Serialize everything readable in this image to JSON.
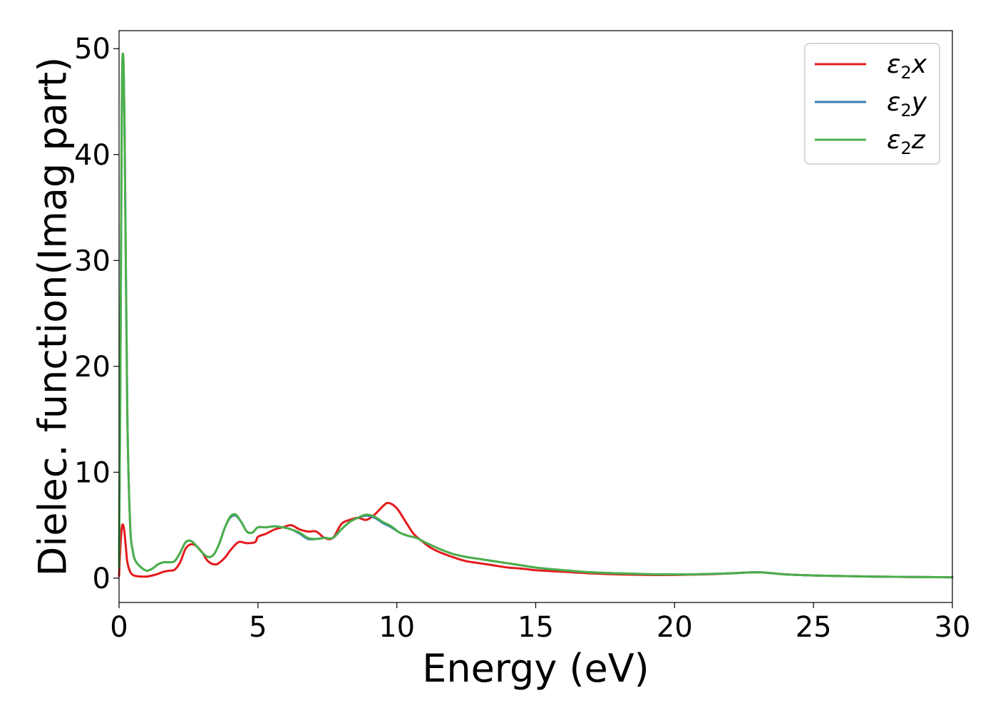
{
  "chart_data": {
    "type": "line",
    "title": "",
    "xlabel": "Energy (eV)",
    "ylabel": "Dielec. function(Imag part)",
    "xlim": [
      0,
      30
    ],
    "ylim": [
      -2.3,
      51.7
    ],
    "xticks": [
      0,
      5,
      10,
      15,
      20,
      25,
      30
    ],
    "yticks": [
      0,
      10,
      20,
      30,
      40,
      50
    ],
    "grid": false,
    "legend_position": "top-right",
    "series": [
      {
        "name": "ε2x",
        "legend_base": "ε",
        "legend_sub": "2",
        "legend_tail": "x",
        "color": "#e41a1c",
        "x": [
          0,
          0.05,
          0.1,
          0.15,
          0.2,
          0.25,
          0.3,
          0.4,
          0.5,
          0.6,
          0.8,
          1.0,
          1.2,
          1.4,
          1.6,
          1.8,
          2.0,
          2.2,
          2.4,
          2.6,
          2.8,
          3.0,
          3.2,
          3.5,
          3.8,
          4.0,
          4.3,
          4.6,
          4.9,
          5.0,
          5.3,
          5.6,
          5.9,
          6.2,
          6.5,
          6.8,
          7.1,
          7.4,
          7.7,
          8.0,
          8.3,
          8.6,
          8.9,
          9.2,
          9.5,
          9.7,
          10.0,
          10.3,
          10.6,
          10.9,
          11.2,
          11.5,
          12.0,
          12.5,
          13.0,
          13.5,
          14.0,
          14.5,
          15.0,
          16.0,
          17.0,
          18.0,
          19.0,
          20.0,
          21.0,
          22.0,
          23.0,
          24.0,
          25.0,
          26.0,
          27.0,
          28.0,
          29.0,
          30.0
        ],
        "y": [
          0.2,
          3.0,
          4.8,
          5.0,
          4.2,
          2.8,
          1.5,
          0.6,
          0.3,
          0.2,
          0.15,
          0.15,
          0.25,
          0.4,
          0.6,
          0.7,
          0.8,
          1.5,
          2.8,
          3.2,
          3.0,
          2.4,
          1.6,
          1.3,
          1.9,
          2.6,
          3.4,
          3.3,
          3.4,
          3.9,
          4.2,
          4.6,
          4.8,
          5.0,
          4.6,
          4.4,
          4.4,
          3.8,
          3.8,
          5.1,
          5.5,
          5.7,
          5.5,
          6.0,
          6.8,
          7.1,
          6.6,
          5.4,
          4.2,
          3.5,
          2.9,
          2.5,
          2.0,
          1.6,
          1.4,
          1.2,
          1.0,
          0.9,
          0.75,
          0.6,
          0.45,
          0.35,
          0.3,
          0.3,
          0.35,
          0.45,
          0.55,
          0.35,
          0.25,
          0.2,
          0.15,
          0.12,
          0.1,
          0.08
        ]
      },
      {
        "name": "ε2y",
        "legend_base": "ε",
        "legend_sub": "2",
        "legend_tail": "y",
        "color": "#377eb8",
        "x": [
          0,
          0.05,
          0.1,
          0.15,
          0.2,
          0.25,
          0.3,
          0.4,
          0.5,
          0.6,
          0.8,
          1.0,
          1.2,
          1.4,
          1.6,
          1.8,
          2.0,
          2.2,
          2.4,
          2.6,
          2.8,
          3.0,
          3.2,
          3.4,
          3.6,
          3.8,
          4.0,
          4.2,
          4.4,
          4.6,
          4.8,
          5.0,
          5.3,
          5.6,
          5.9,
          6.2,
          6.5,
          6.8,
          7.1,
          7.4,
          7.7,
          8.0,
          8.3,
          8.6,
          8.9,
          9.2,
          9.5,
          9.8,
          10.1,
          10.4,
          10.7,
          11.0,
          11.5,
          12.0,
          12.5,
          13.0,
          13.5,
          14.0,
          14.5,
          15.0,
          16.0,
          17.0,
          18.0,
          19.0,
          20.0,
          21.0,
          22.0,
          23.0,
          24.0,
          25.0,
          26.0,
          27.0,
          28.0,
          29.0,
          30.0
        ],
        "y": [
          1.0,
          20.0,
          45.0,
          49.3,
          42.0,
          28.0,
          15.0,
          5.0,
          2.5,
          1.6,
          1.0,
          0.7,
          0.9,
          1.3,
          1.5,
          1.5,
          1.6,
          2.4,
          3.4,
          3.5,
          3.0,
          2.4,
          2.0,
          2.2,
          3.2,
          4.7,
          5.7,
          5.9,
          5.3,
          4.4,
          4.3,
          4.8,
          4.8,
          4.9,
          4.8,
          4.6,
          4.2,
          3.7,
          3.7,
          3.8,
          3.8,
          4.6,
          5.3,
          5.7,
          5.9,
          5.7,
          5.2,
          4.8,
          4.3,
          4.0,
          3.8,
          3.4,
          2.8,
          2.3,
          2.0,
          1.8,
          1.6,
          1.4,
          1.2,
          1.0,
          0.75,
          0.55,
          0.45,
          0.38,
          0.35,
          0.38,
          0.45,
          0.55,
          0.35,
          0.25,
          0.2,
          0.15,
          0.12,
          0.1,
          0.08
        ]
      },
      {
        "name": "ε2z",
        "legend_base": "ε",
        "legend_sub": "2",
        "legend_tail": "z",
        "color": "#4daf4a",
        "x": [
          0,
          0.05,
          0.1,
          0.15,
          0.2,
          0.25,
          0.3,
          0.4,
          0.5,
          0.6,
          0.8,
          1.0,
          1.2,
          1.4,
          1.6,
          1.8,
          2.0,
          2.2,
          2.4,
          2.6,
          2.8,
          3.0,
          3.2,
          3.4,
          3.6,
          3.8,
          4.0,
          4.2,
          4.4,
          4.6,
          4.8,
          5.0,
          5.3,
          5.6,
          5.9,
          6.2,
          6.5,
          6.8,
          7.1,
          7.4,
          7.7,
          8.0,
          8.3,
          8.6,
          8.9,
          9.2,
          9.5,
          9.8,
          10.1,
          10.4,
          10.7,
          11.0,
          11.5,
          12.0,
          12.5,
          13.0,
          13.5,
          14.0,
          14.5,
          15.0,
          16.0,
          17.0,
          18.0,
          19.0,
          20.0,
          21.0,
          22.0,
          23.0,
          24.0,
          25.0,
          26.0,
          27.0,
          28.0,
          29.0,
          30.0
        ],
        "y": [
          1.0,
          20.0,
          45.0,
          49.3,
          42.0,
          28.0,
          15.0,
          5.0,
          2.5,
          1.6,
          1.0,
          0.7,
          0.9,
          1.3,
          1.5,
          1.5,
          1.6,
          2.4,
          3.4,
          3.5,
          3.0,
          2.4,
          2.0,
          2.2,
          3.2,
          4.7,
          5.8,
          6.0,
          5.3,
          4.4,
          4.3,
          4.8,
          4.8,
          4.9,
          4.8,
          4.6,
          4.3,
          3.8,
          3.7,
          3.8,
          3.8,
          4.6,
          5.3,
          5.7,
          6.0,
          5.8,
          5.3,
          4.9,
          4.3,
          4.0,
          3.8,
          3.4,
          2.8,
          2.3,
          2.0,
          1.8,
          1.6,
          1.4,
          1.2,
          1.0,
          0.75,
          0.55,
          0.45,
          0.38,
          0.35,
          0.38,
          0.45,
          0.55,
          0.35,
          0.25,
          0.2,
          0.15,
          0.12,
          0.1,
          0.08
        ]
      }
    ]
  }
}
